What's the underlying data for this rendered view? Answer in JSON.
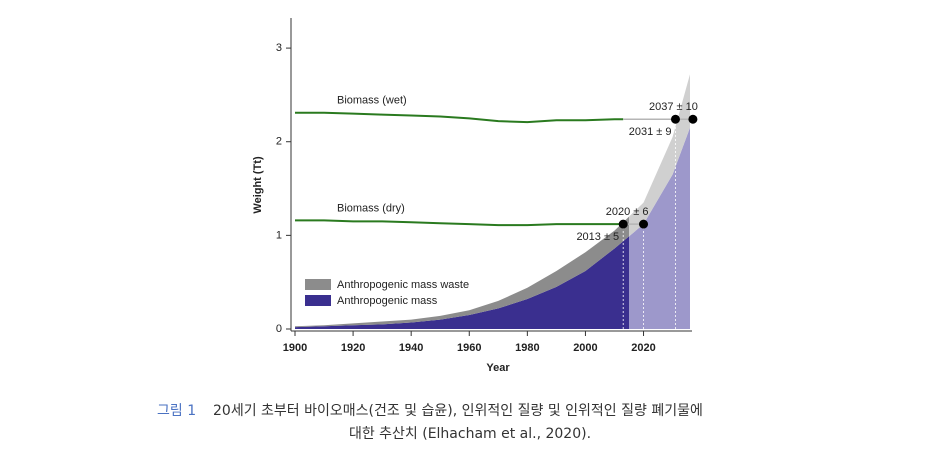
{
  "chart_data": {
    "type": "area",
    "x_label": "Year",
    "y_label": "Weight (Tt)",
    "xlim": [
      1900,
      2036
    ],
    "ylim": [
      0,
      3.3
    ],
    "xticks": [
      1900,
      1920,
      1940,
      1960,
      1980,
      2000,
      2020
    ],
    "yticks": [
      0,
      1,
      2,
      3
    ],
    "projection_from": 2015,
    "areas": {
      "x": [
        1900,
        1910,
        1920,
        1930,
        1940,
        1950,
        1960,
        1970,
        1980,
        1990,
        2000,
        2010,
        2020,
        2030,
        2036
      ],
      "series": [
        {
          "name": "Anthropogenic mass",
          "color": "#3a2f8f",
          "projection_color": "#9d98cb",
          "values": [
            0.02,
            0.03,
            0.04,
            0.05,
            0.07,
            0.1,
            0.15,
            0.22,
            0.32,
            0.45,
            0.62,
            0.86,
            1.12,
            1.65,
            2.15
          ]
        },
        {
          "name": "Anthropogenic mass waste",
          "color": "#8c8c8c",
          "projection_color": "#d0d0d0",
          "values": [
            0.01,
            0.01,
            0.02,
            0.03,
            0.03,
            0.04,
            0.05,
            0.08,
            0.12,
            0.17,
            0.2,
            0.19,
            0.23,
            0.4,
            0.57
          ]
        }
      ]
    },
    "lines": {
      "x": [
        1900,
        1910,
        1920,
        1930,
        1940,
        1950,
        1960,
        1970,
        1980,
        1990,
        2000,
        2010,
        2013
      ],
      "series": [
        {
          "name": "Biomass (wet)",
          "color": "#2a7a1f",
          "values": [
            2.31,
            2.31,
            2.3,
            2.29,
            2.28,
            2.27,
            2.25,
            2.22,
            2.21,
            2.23,
            2.23,
            2.24,
            2.24
          ]
        },
        {
          "name": "Biomass (dry)",
          "color": "#2a7a1f",
          "values": [
            1.16,
            1.16,
            1.15,
            1.15,
            1.14,
            1.13,
            1.12,
            1.11,
            1.11,
            1.12,
            1.12,
            1.12,
            1.12
          ]
        }
      ]
    },
    "annotations": [
      {
        "x": 2037,
        "y": 2.24,
        "label": "2037 ± 10",
        "position": "above"
      },
      {
        "x": 2031,
        "y": 2.24,
        "label": "2031 ± 9",
        "position": "below"
      },
      {
        "x": 2020,
        "y": 1.12,
        "label": "2020 ± 6",
        "position": "above"
      },
      {
        "x": 2013,
        "y": 1.12,
        "label": "2013 ± 5",
        "position": "below"
      }
    ]
  },
  "caption": {
    "label": "그림 1",
    "lines": [
      "20세기 초부터 바이오매스(건조 및 습윤), 인위적인 질량 및 인위적인 질량 폐기물에",
      "대한 추산치 (Elhacham et al., 2020)."
    ]
  }
}
